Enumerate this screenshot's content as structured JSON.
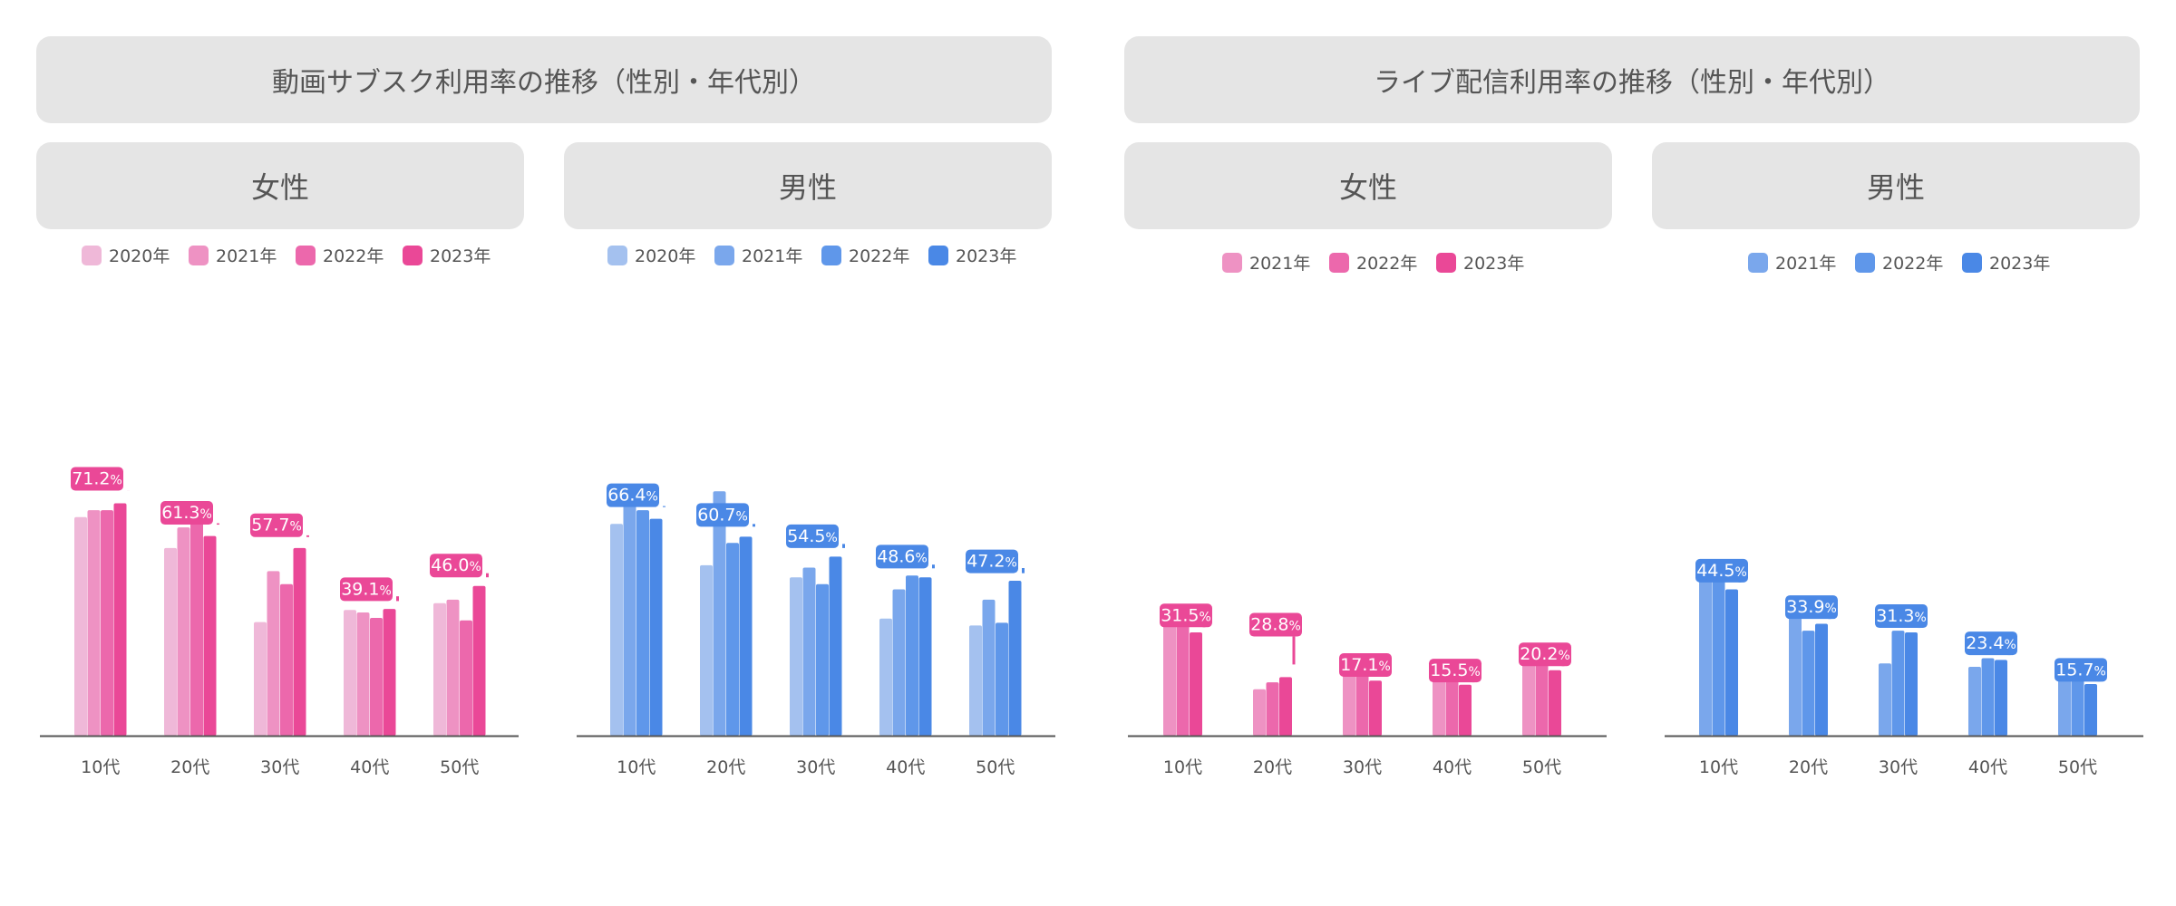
{
  "groups": [
    {
      "title": "動画サブスク利用率の推移（性別・年代別）"
    },
    {
      "title": "ライブ配信利用率の推移（性別・年代別）"
    }
  ],
  "chart_data": [
    {
      "type": "bar",
      "title": "女性",
      "categories": [
        "10代",
        "20代",
        "30代",
        "40代",
        "50代"
      ],
      "ylim": [
        0,
        100
      ],
      "series": [
        {
          "name": "2020年",
          "color": "#efb8d8",
          "values": [
            63.5,
            54.5,
            33.0,
            36.5,
            38.5
          ]
        },
        {
          "name": "2021年",
          "color": "#ee92c3",
          "values": [
            65.5,
            60.5,
            47.8,
            35.8,
            39.5
          ]
        },
        {
          "name": "2022年",
          "color": "#ec68ac",
          "values": [
            65.5,
            65.5,
            44.0,
            34.2,
            33.5
          ]
        },
        {
          "name": "2023年",
          "color": "#ea4897",
          "values": [
            67.5,
            58.0,
            54.5,
            36.8,
            43.5
          ]
        }
      ],
      "annotations": [
        {
          "category": "10代",
          "label": "71.2",
          "unit": "%"
        },
        {
          "category": "20代",
          "label": "61.3",
          "unit": "%"
        },
        {
          "category": "30代",
          "label": "57.7",
          "unit": "%"
        },
        {
          "category": "40代",
          "label": "39.1",
          "unit": "%"
        },
        {
          "category": "50代",
          "label": "46.0",
          "unit": "%"
        }
      ]
    },
    {
      "type": "bar",
      "title": "男性",
      "categories": [
        "10代",
        "20代",
        "30代",
        "40代",
        "50代"
      ],
      "ylim": [
        0,
        100
      ],
      "series": [
        {
          "name": "2020年",
          "color": "#a4c1ef",
          "values": [
            61.5,
            49.5,
            46.0,
            34.0,
            32.0
          ]
        },
        {
          "name": "2021年",
          "color": "#7aa7ec",
          "values": [
            71.0,
            71.0,
            48.8,
            42.5,
            39.5
          ]
        },
        {
          "name": "2022年",
          "color": "#5f97ea",
          "values": [
            65.5,
            56.0,
            44.0,
            46.5,
            32.8
          ]
        },
        {
          "name": "2023年",
          "color": "#4a88e6",
          "values": [
            63.0,
            57.8,
            52.0,
            46.0,
            45.0
          ]
        }
      ],
      "annotations": [
        {
          "category": "10代",
          "label": "66.4",
          "unit": "%"
        },
        {
          "category": "20代",
          "label": "60.7",
          "unit": "%"
        },
        {
          "category": "30代",
          "label": "54.5",
          "unit": "%"
        },
        {
          "category": "40代",
          "label": "48.6",
          "unit": "%"
        },
        {
          "category": "50代",
          "label": "47.2",
          "unit": "%"
        }
      ]
    },
    {
      "type": "bar",
      "title": "女性",
      "categories": [
        "10代",
        "20代",
        "30代",
        "40代",
        "50代"
      ],
      "ylim": [
        0,
        100
      ],
      "series": [
        {
          "name": "2021年",
          "color": "#ee92c3",
          "values": [
            35.0,
            13.5,
            19.5,
            16.5,
            25.0
          ]
        },
        {
          "name": "2022年",
          "color": "#ec68ac",
          "values": [
            37.0,
            15.5,
            22.5,
            17.0,
            23.0
          ]
        },
        {
          "name": "2023年",
          "color": "#ea4897",
          "values": [
            30.0,
            17.0,
            16.0,
            14.8,
            19.0
          ]
        }
      ],
      "annotations": [
        {
          "category": "10代",
          "label": "31.5",
          "unit": "%"
        },
        {
          "category": "20代",
          "label": "28.8",
          "unit": "%"
        },
        {
          "category": "30代",
          "label": "17.1",
          "unit": "%"
        },
        {
          "category": "40代",
          "label": "15.5",
          "unit": "%"
        },
        {
          "category": "50代",
          "label": "20.2",
          "unit": "%"
        }
      ]
    },
    {
      "type": "bar",
      "title": "男性",
      "categories": [
        "10代",
        "20代",
        "30代",
        "40代",
        "50代"
      ],
      "ylim": [
        0,
        100
      ],
      "series": [
        {
          "name": "2021年",
          "color": "#7aa7ec",
          "values": [
            49.0,
            35.0,
            21.0,
            20.0,
            22.0
          ]
        },
        {
          "name": "2022年",
          "color": "#5f97ea",
          "values": [
            50.5,
            30.5,
            30.5,
            22.5,
            16.5
          ]
        },
        {
          "name": "2023年",
          "color": "#4a88e6",
          "values": [
            42.5,
            32.5,
            30.0,
            22.0,
            15.0
          ]
        }
      ],
      "annotations": [
        {
          "category": "10代",
          "label": "44.5",
          "unit": "%"
        },
        {
          "category": "20代",
          "label": "33.9",
          "unit": "%"
        },
        {
          "category": "30代",
          "label": "31.3",
          "unit": "%"
        },
        {
          "category": "40代",
          "label": "23.4",
          "unit": "%"
        },
        {
          "category": "50代",
          "label": "15.7",
          "unit": "%"
        }
      ]
    }
  ]
}
